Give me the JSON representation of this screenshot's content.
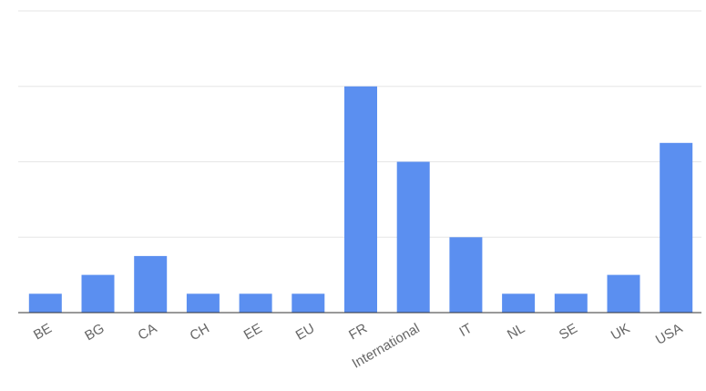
{
  "chart_data": {
    "type": "bar",
    "categories": [
      "BE",
      "BG",
      "CA",
      "CH",
      "EE",
      "EU",
      "FR",
      "International",
      "IT",
      "NL",
      "SE",
      "UK",
      "USA"
    ],
    "values": [
      1,
      2,
      3,
      1,
      1,
      1,
      12,
      8,
      4,
      1,
      1,
      2,
      9
    ],
    "ylim": [
      0,
      16
    ],
    "gridlines": [
      0,
      4,
      8,
      12,
      16
    ],
    "grid": true,
    "legend": "none",
    "title": "",
    "xlabel": "",
    "ylabel": "",
    "bar_color": "#5b8ff0",
    "grid_color": "#e6e6e6",
    "axis_color": "#333333",
    "label_color": "#666666"
  }
}
